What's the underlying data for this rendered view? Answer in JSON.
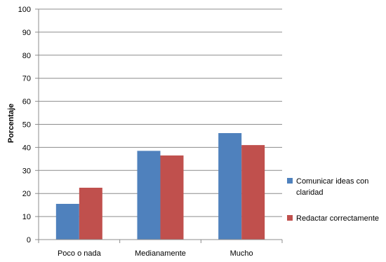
{
  "chart_data": {
    "type": "bar",
    "categories": [
      "Poco o nada",
      "Medianamente",
      "Mucho"
    ],
    "series": [
      {
        "name": "Comunicar ideas con claridad",
        "values": [
          15.5,
          38.5,
          46.2
        ],
        "color": "#4F81BD"
      },
      {
        "name": "Redactar correctamente",
        "values": [
          22.5,
          36.5,
          41.0
        ],
        "color": "#C0504D"
      }
    ],
    "ylabel": "Porcentaje",
    "xlabel": "",
    "ylim": [
      0,
      100
    ],
    "yticks": [
      "0",
      "10",
      "20",
      "30",
      "40",
      "50",
      "60",
      "70",
      "80",
      "90",
      "100"
    ],
    "grid": true,
    "legend_position": "right",
    "legend": {
      "items": [
        {
          "lines": [
            "Comunicar ideas con",
            "claridad"
          ]
        },
        {
          "lines": [
            "Redactar correctamente"
          ]
        }
      ]
    }
  }
}
